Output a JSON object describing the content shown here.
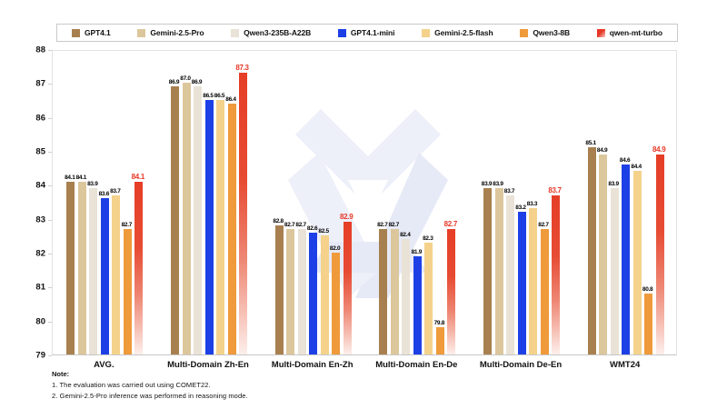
{
  "legend": {
    "items": [
      {
        "label": "GPT4.1",
        "color": "#A8804F"
      },
      {
        "label": "Gemini-2.5-Pro",
        "color": "#DCC79C"
      },
      {
        "label": "Qwen3-235B-A22B",
        "color": "#E9E2D6"
      },
      {
        "label": "GPT4.1-mini",
        "color": "#1D40E6"
      },
      {
        "label": "Gemini-2.5-flash",
        "color": "#F4D28B"
      },
      {
        "label": "Qwen3-8B",
        "color": "#EF9A3B"
      },
      {
        "label": "qwen-mt-turbo",
        "color": "#E73726",
        "gradient": true
      }
    ]
  },
  "chart_data": {
    "type": "bar",
    "title": "",
    "categories": [
      "AVG.",
      "Multi-Domain Zh-En",
      "Multi-Domain En-Zh",
      "Multi-Domain En-De",
      "Multi-Domain De-En",
      "WMT24"
    ],
    "series": [
      {
        "name": "GPT4.1",
        "color": "#A8804F",
        "values": [
          84.1,
          86.9,
          82.8,
          82.7,
          83.9,
          85.1
        ]
      },
      {
        "name": "Gemini-2.5-Pro",
        "color": "#DCC79C",
        "values": [
          84.1,
          87.0,
          82.7,
          82.7,
          83.9,
          84.9
        ]
      },
      {
        "name": "Qwen3-235B-A22B",
        "color": "#E9E2D6",
        "values": [
          83.9,
          86.9,
          82.7,
          82.4,
          83.7,
          83.9
        ]
      },
      {
        "name": "GPT4.1-mini",
        "color": "#1D40E6",
        "values": [
          83.6,
          86.5,
          82.6,
          81.9,
          83.2,
          84.6
        ]
      },
      {
        "name": "Gemini-2.5-flash",
        "color": "#F4D28B",
        "values": [
          83.7,
          86.5,
          82.5,
          82.3,
          83.3,
          84.4
        ]
      },
      {
        "name": "Qwen3-8B",
        "color": "#EF9A3B",
        "values": [
          82.7,
          86.4,
          82.0,
          79.8,
          82.7,
          80.8
        ]
      },
      {
        "name": "qwen-mt-turbo",
        "color": "#E73726",
        "highlight": true,
        "values": [
          84.1,
          87.3,
          82.9,
          82.7,
          83.7,
          84.9
        ]
      }
    ],
    "ylim": [
      79,
      88
    ],
    "yticks": [
      79,
      80,
      81,
      82,
      83,
      84,
      85,
      86,
      87,
      88
    ],
    "grid": false,
    "legend_position": "top",
    "highlight_label_color": "#E73726",
    "highlight_gradient": [
      "#E63E27",
      "#E74B33",
      "#EE8673",
      "#F7C3B8",
      "#FDEFEC"
    ]
  },
  "notes": {
    "title": "Note:",
    "lines": [
      "1. The evaluation was carried out using COMET22.",
      "2. Gemini-2.5-Pro inference was performed in reasoning mode."
    ]
  },
  "watermark": {
    "name": "logo-watermark",
    "color": "#ECEEF8",
    "color2": "#E3E6F4"
  }
}
